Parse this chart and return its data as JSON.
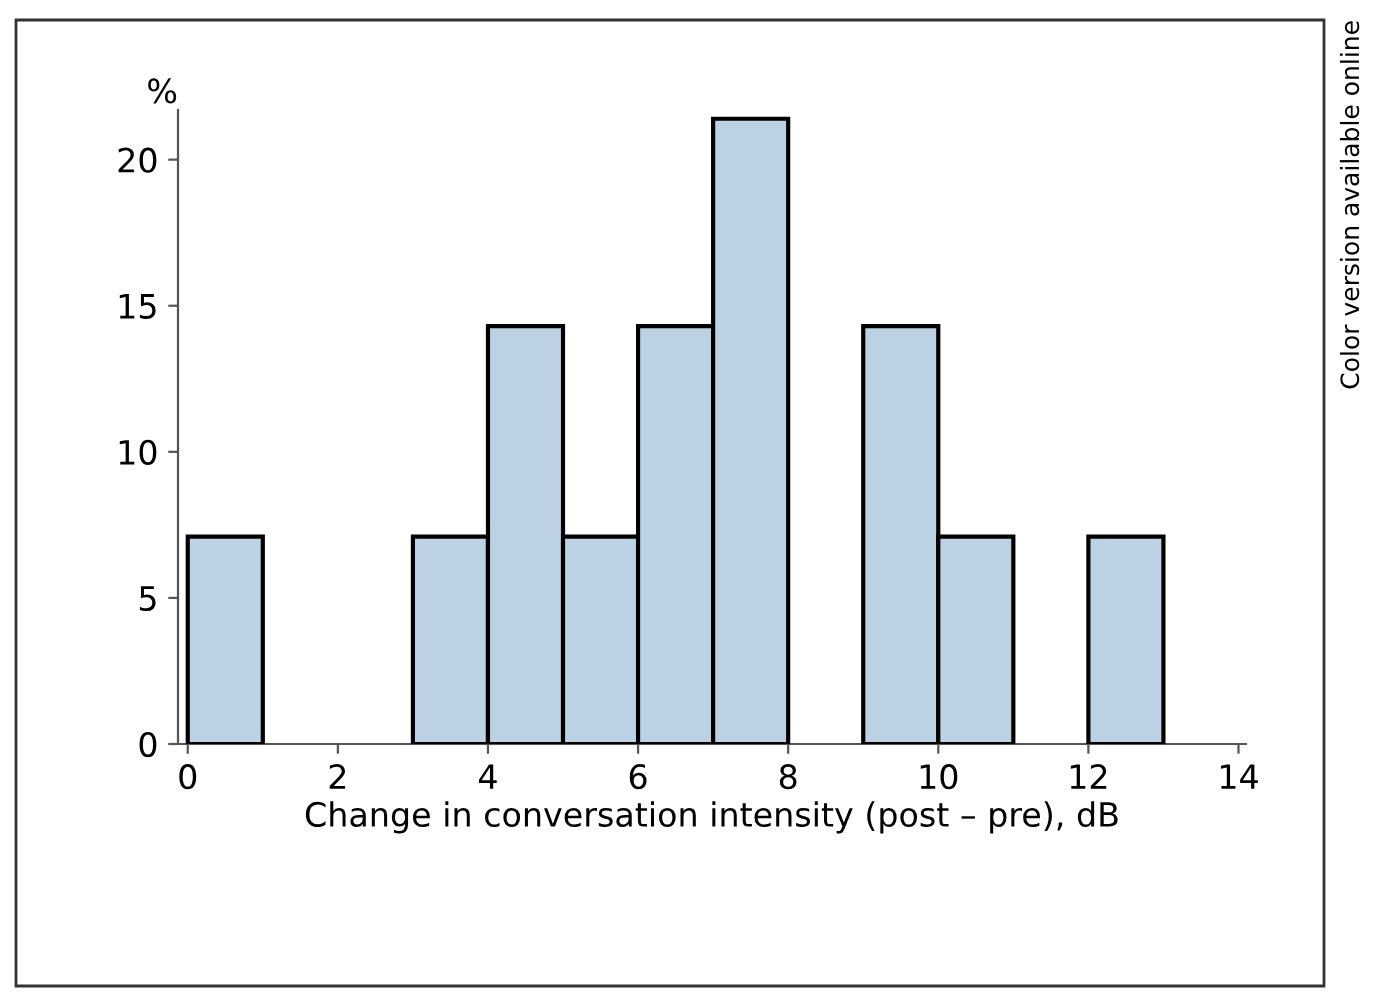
{
  "chart_data": {
    "type": "histogram",
    "ylabel": "%",
    "xlabel": "Change in conversation intensity (post – pre), dB",
    "bins": [
      0,
      1,
      2,
      3,
      4,
      5,
      6,
      7,
      8,
      9,
      10,
      11,
      12,
      13
    ],
    "values": [
      7.1,
      0,
      0,
      7.1,
      14.3,
      7.1,
      14.3,
      21.4,
      0,
      14.3,
      7.1,
      0,
      7.1
    ],
    "color": "#bdd1e4",
    "xlim": [
      -0.13,
      14.1
    ],
    "xticks": [
      0,
      2,
      4,
      6,
      8,
      10,
      12,
      14
    ],
    "ylim": [
      0,
      21.7
    ],
    "yticks": [
      0,
      5,
      10,
      15,
      20
    ],
    "grid": false,
    "annotations": [
      "Color version available online"
    ]
  }
}
